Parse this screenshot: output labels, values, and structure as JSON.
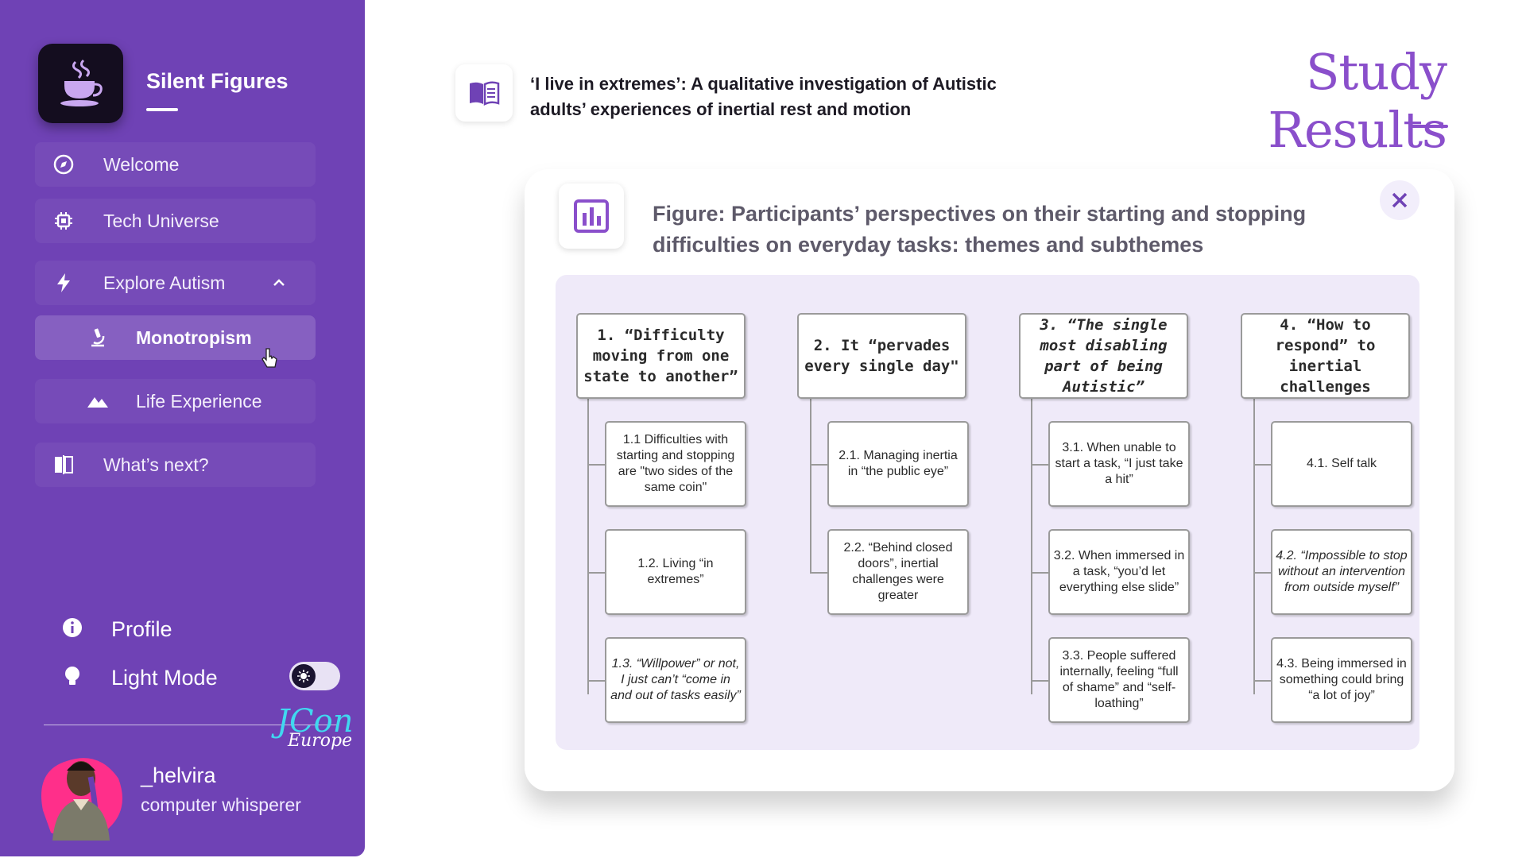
{
  "sidebar": {
    "brand": "Silent Figures",
    "nav": {
      "welcome": "Welcome",
      "tech_universe": "Tech Universe",
      "explore_autism": "Explore Autism",
      "monotropism": "Monotropism",
      "life_experience": "Life Experience",
      "whats_next": "What’s next?"
    },
    "profile": "Profile",
    "light_mode": "Light Mode",
    "event_logo": {
      "line1": "JCon",
      "line2": "Europe"
    },
    "user": {
      "name": "_helvira",
      "title": "computer whisperer"
    }
  },
  "main": {
    "paper_title": "‘I live in extremes’: A qualitative investigation of Autistic adults’ experiences of inertial rest and motion",
    "page_title": "Study Results",
    "figure_title": "Figure: Participants’ perspectives on their starting and stopping difficulties on everyday tasks:  themes and subthemes",
    "themes": [
      {
        "label": "1. “Difficulty moving from one state to another”",
        "subthemes": [
          "1.1 Difficulties with starting and stopping are \"two sides of the same coin\"",
          "1.2. Living “in extremes”",
          "1.3. “Willpower” or not, I just can’t “come in and out of tasks easily”"
        ]
      },
      {
        "label": "2. It “pervades every single day\"",
        "subthemes": [
          "2.1. Managing inertia in “the public eye”",
          "2.2. “Behind closed doors”, inertial challenges were greater"
        ]
      },
      {
        "label": "3. “The single most disabling part of being Autistic”",
        "subthemes": [
          "3.1. When unable to start a task, “I just take a hit”",
          "3.2. When immersed in a task, “you’d let everything else slide”",
          "3.3. People suffered internally, feeling “full of shame” and “self-loathing”"
        ]
      },
      {
        "label": "4. “How to respond” to inertial challenges",
        "subthemes": [
          "4.1. Self talk",
          "4.2. “Impossible to stop without an intervention from outside myself”",
          "4.3. Being immersed in something could bring “a lot of joy”"
        ]
      }
    ]
  },
  "colors": {
    "sidebar_bg": "#6f42b5",
    "accent": "#8a4fcb",
    "diagram_bg": "#efeaf9"
  }
}
